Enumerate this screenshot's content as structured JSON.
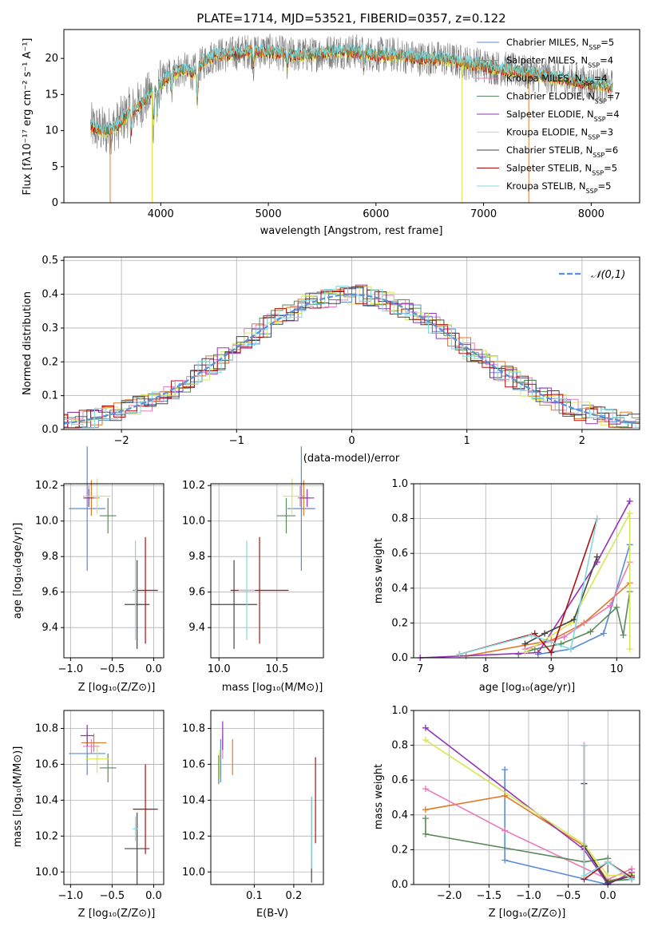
{
  "colors": {
    "chabrier_miles": "#5a8bd8",
    "salpeter_miles": "#e07a29",
    "kroupa_miles": "#e87bb7",
    "chabrier_elodie": "#5b8a5a",
    "salpeter_elodie": "#9433b6",
    "kroupa_elodie": "#d8e655",
    "chabrier_stelib": "#444444",
    "salpeter_stelib": "#b00f0f",
    "kroupa_stelib": "#7fd8e0",
    "gauss": "#5b8fd8",
    "grid": "#b0b0b0",
    "spectrum_gray": "#7a7a7a"
  },
  "chart_data": [
    {
      "id": "spectrum",
      "type": "line",
      "title": "PLATE=1714, MJD=53521, FIBERID=0357, z=0.122",
      "xlabel": "wavelength [Angstrom, rest frame]",
      "ylabel": "Flux [fλ10⁻¹⁷ erg cm⁻² s⁻¹ A⁻¹]",
      "xlim": [
        3100,
        8450
      ],
      "ylim": [
        0,
        24
      ],
      "xticks": [
        "4000",
        "5000",
        "6000",
        "7000",
        "8000"
      ],
      "yticks": [
        "0",
        "5",
        "10",
        "15",
        "20"
      ],
      "legend_position": "top-right",
      "legend": [
        {
          "label": "Chabrier MILES, N",
          "sub": "SSP",
          "tail": "=5",
          "color_key": "chabrier_miles"
        },
        {
          "label": "Salpeter MILES, N",
          "sub": "SSP",
          "tail": "=4",
          "color_key": "salpeter_miles"
        },
        {
          "label": "Kroupa MILES, N",
          "sub": "SSP",
          "tail": "=4",
          "color_key": "kroupa_miles"
        },
        {
          "label": "Chabrier ELODIE, N",
          "sub": "SSP",
          "tail": "=7",
          "color_key": "chabrier_elodie"
        },
        {
          "label": "Salpeter ELODIE, N",
          "sub": "SSP",
          "tail": "=4",
          "color_key": "salpeter_elodie"
        },
        {
          "label": "Kroupa ELODIE, N",
          "sub": "SSP",
          "tail": "=3",
          "color_key": "kroupa_elodie"
        },
        {
          "label": "Chabrier STELIB, N",
          "sub": "SSP",
          "tail": "=6",
          "color_key": "chabrier_stelib"
        },
        {
          "label": "Salpeter STELIB, N",
          "sub": "SSP",
          "tail": "=5",
          "color_key": "salpeter_stelib"
        },
        {
          "label": "Kroupa STELIB, N",
          "sub": "SSP",
          "tail": "=5",
          "color_key": "kroupa_stelib"
        }
      ],
      "trend": [
        [
          3350,
          10.5
        ],
        [
          3500,
          9.8
        ],
        [
          3600,
          10.8
        ],
        [
          3700,
          12.5
        ],
        [
          3800,
          13.5
        ],
        [
          3900,
          15
        ],
        [
          4000,
          16.5
        ],
        [
          4100,
          18
        ],
        [
          4200,
          18.5
        ],
        [
          4300,
          18
        ],
        [
          4400,
          19.5
        ],
        [
          4500,
          20.5
        ],
        [
          4600,
          20.5
        ],
        [
          4800,
          21
        ],
        [
          5000,
          21
        ],
        [
          5200,
          20.5
        ],
        [
          5400,
          20.5
        ],
        [
          5600,
          21
        ],
        [
          5800,
          21
        ],
        [
          6000,
          20.5
        ],
        [
          6200,
          20.5
        ],
        [
          6400,
          20
        ],
        [
          6600,
          20
        ],
        [
          6800,
          19.5
        ],
        [
          7000,
          19
        ],
        [
          7200,
          18.5
        ],
        [
          7400,
          18
        ],
        [
          7600,
          17.5
        ],
        [
          7800,
          17
        ],
        [
          8000,
          16.5
        ],
        [
          8200,
          16
        ]
      ]
    },
    {
      "id": "residuals",
      "type": "area",
      "xlabel": "(data-model)/error",
      "ylabel": "Normed distribution",
      "xlim": [
        -2.5,
        2.5
      ],
      "ylim": [
        0,
        0.51
      ],
      "xticks": [
        "−2",
        "−1",
        "0",
        "1",
        "2"
      ],
      "yticks": [
        "0.0",
        "0.1",
        "0.2",
        "0.3",
        "0.4",
        "0.5"
      ],
      "grid": true,
      "legend_position": "top-right",
      "legend": [
        {
          "label": "𝒩(0,1)",
          "color_key": "gauss"
        }
      ]
    },
    {
      "id": "age_vs_Z",
      "type": "scatter",
      "xlabel": "Z [log₁₀(Z/Z⊙)]",
      "ylabel": "age  [log₁₀(age/yr)]",
      "xlim": [
        -1.08,
        0.12
      ],
      "ylim": [
        9.23,
        10.21
      ],
      "xticks": [
        [
          "−1.0",
          -1.0
        ],
        [
          "−0.5",
          -0.5
        ],
        [
          "0.0",
          0.0
        ]
      ],
      "yticks": [
        [
          "9.4",
          9.4
        ],
        [
          "9.6",
          9.6
        ],
        [
          "9.8",
          9.8
        ],
        [
          "10.0",
          10.0
        ],
        [
          "10.2",
          10.2
        ]
      ],
      "grid": true,
      "points": [
        {
          "c": "chabrier_miles",
          "x": -0.8,
          "xe": 0.22,
          "y": 10.07,
          "ye": 0.35
        },
        {
          "c": "salpeter_miles",
          "x": -0.75,
          "xe": 0.1,
          "y": 10.13,
          "ye": 0.1
        },
        {
          "c": "kroupa_miles",
          "x": -0.78,
          "xe": 0.07,
          "y": 10.14,
          "ye": 0.06
        },
        {
          "c": "chabrier_elodie",
          "x": -0.55,
          "xe": 0.1,
          "y": 10.03,
          "ye": 0.1
        },
        {
          "c": "salpeter_elodie",
          "x": -0.78,
          "xe": 0.06,
          "y": 10.13,
          "ye": 0.05
        },
        {
          "c": "kroupa_elodie",
          "x": -0.68,
          "xe": 0.16,
          "y": 10.14,
          "ye": 0.1
        },
        {
          "c": "chabrier_stelib",
          "x": -0.2,
          "xe": 0.15,
          "y": 9.53,
          "ye": 0.25
        },
        {
          "c": "salpeter_stelib",
          "x": -0.1,
          "xe": 0.15,
          "y": 9.61,
          "ye": 0.3
        },
        {
          "c": "kroupa_stelib",
          "x": -0.22,
          "xe": 0.02,
          "y": 9.61,
          "ye": 0.28
        }
      ]
    },
    {
      "id": "age_vs_mass",
      "type": "scatter",
      "xlabel": "mass [log₁₀(M/M⊙)]",
      "xlim": [
        9.93,
        10.9
      ],
      "ylim": [
        9.23,
        10.21
      ],
      "xticks": [
        [
          "10.0",
          10.0
        ],
        [
          "10.5",
          10.5
        ]
      ],
      "yticks": [
        [
          "9.4",
          9.4
        ],
        [
          "9.6",
          9.6
        ],
        [
          "9.8",
          9.8
        ],
        [
          "10.0",
          10.0
        ],
        [
          "10.2",
          10.2
        ]
      ],
      "grid": true,
      "points": [
        {
          "c": "chabrier_miles",
          "x": 10.71,
          "xe": 0.12,
          "y": 10.07,
          "ye": 0.35
        },
        {
          "c": "salpeter_miles",
          "x": 10.73,
          "xe": 0.05,
          "y": 10.13,
          "ye": 0.1
        },
        {
          "c": "kroupa_miles",
          "x": 10.7,
          "xe": 0.04,
          "y": 10.14,
          "ye": 0.06
        },
        {
          "c": "chabrier_elodie",
          "x": 10.58,
          "xe": 0.08,
          "y": 10.03,
          "ye": 0.1
        },
        {
          "c": "salpeter_elodie",
          "x": 10.76,
          "xe": 0.06,
          "y": 10.13,
          "ye": 0.05
        },
        {
          "c": "kroupa_elodie",
          "x": 10.63,
          "xe": 0.08,
          "y": 10.14,
          "ye": 0.1
        },
        {
          "c": "chabrier_stelib",
          "x": 10.13,
          "xe": 0.2,
          "y": 9.53,
          "ye": 0.25
        },
        {
          "c": "salpeter_stelib",
          "x": 10.35,
          "xe": 0.25,
          "y": 9.61,
          "ye": 0.3
        },
        {
          "c": "kroupa_stelib",
          "x": 10.24,
          "xe": 0.07,
          "y": 9.61,
          "ye": 0.28
        }
      ]
    },
    {
      "id": "massweight_vs_age",
      "type": "line",
      "xlabel": "age  [log₁₀(age/yr)]",
      "ylabel": "mass weight",
      "xlim": [
        6.9,
        10.35
      ],
      "ylim": [
        0,
        1.0
      ],
      "xticks": [
        [
          "7",
          7
        ],
        [
          "8",
          8
        ],
        [
          "9",
          9
        ],
        [
          "10",
          10
        ]
      ],
      "yticks": [
        [
          "0.0",
          0
        ],
        [
          "0.2",
          0.2
        ],
        [
          "0.4",
          0.4
        ],
        [
          "0.6",
          0.6
        ],
        [
          "0.8",
          0.8
        ],
        [
          "1.0",
          1.0
        ]
      ],
      "grid": true,
      "series": [
        {
          "c": "chabrier_miles",
          "x": [
            8.8,
            9.3,
            9.8,
            10.2
          ],
          "y": [
            0.02,
            0.05,
            0.14,
            0.65
          ]
        },
        {
          "c": "salpeter_miles",
          "x": [
            7.7,
            9.0,
            9.5,
            10.2
          ],
          "y": [
            0.01,
            0.1,
            0.2,
            0.43
          ]
        },
        {
          "c": "kroupa_miles",
          "x": [
            8.6,
            9.2,
            9.9,
            10.2
          ],
          "y": [
            0.05,
            0.12,
            0.3,
            0.55
          ]
        },
        {
          "c": "chabrier_elodie",
          "x": [
            8.5,
            8.75,
            9.15,
            9.6,
            10.0,
            10.1,
            10.2
          ],
          "y": [
            0.02,
            0.05,
            0.08,
            0.15,
            0.29,
            0.13,
            0.38
          ]
        },
        {
          "c": "salpeter_elodie",
          "x": [
            7.0,
            8.8,
            9.7,
            10.2
          ],
          "y": [
            0.0,
            0.03,
            0.55,
            0.9
          ]
        },
        {
          "c": "kroupa_elodie",
          "x": [
            8.6,
            9.3,
            10.2,
            10.2
          ],
          "y": [
            0.03,
            0.2,
            0.83,
            0.05
          ]
        },
        {
          "c": "chabrier_stelib",
          "x": [
            8.6,
            8.9,
            9.35,
            9.7
          ],
          "y": [
            0.08,
            0.14,
            0.22,
            0.58
          ]
        },
        {
          "c": "salpeter_stelib",
          "x": [
            7.6,
            8.75,
            9.0,
            9.7
          ],
          "y": [
            0.02,
            0.14,
            0.03,
            0.8
          ]
        },
        {
          "c": "kroupa_stelib",
          "x": [
            7.6,
            8.7,
            9.3,
            9.7
          ],
          "y": [
            0.02,
            0.13,
            0.05,
            0.8
          ]
        }
      ]
    },
    {
      "id": "mass_vs_Z",
      "type": "scatter",
      "xlabel": "Z [log₁₀(Z/Z⊙)]",
      "ylabel": "mass [log₁₀(M/M⊙)]",
      "xlim": [
        -1.08,
        0.12
      ],
      "ylim": [
        9.93,
        10.9
      ],
      "xticks": [
        [
          "−1.0",
          -1.0
        ],
        [
          "−0.5",
          -0.5
        ],
        [
          "0.0",
          0.0
        ]
      ],
      "yticks": [
        [
          "10.0",
          10.0
        ],
        [
          "10.2",
          10.2
        ],
        [
          "10.4",
          10.4
        ],
        [
          "10.6",
          10.6
        ],
        [
          "10.8",
          10.8
        ]
      ],
      "grid": true,
      "points": [
        {
          "c": "chabrier_miles",
          "x": -0.8,
          "xe": 0.22,
          "y": 10.66,
          "ye": 0.12
        },
        {
          "c": "salpeter_miles",
          "x": -0.72,
          "xe": 0.15,
          "y": 10.72,
          "ye": 0.05
        },
        {
          "c": "kroupa_miles",
          "x": -0.75,
          "xe": 0.1,
          "y": 10.7,
          "ye": 0.04
        },
        {
          "c": "chabrier_elodie",
          "x": -0.55,
          "xe": 0.1,
          "y": 10.58,
          "ye": 0.08
        },
        {
          "c": "salpeter_elodie",
          "x": -0.8,
          "xe": 0.08,
          "y": 10.76,
          "ye": 0.06
        },
        {
          "c": "kroupa_elodie",
          "x": -0.68,
          "xe": 0.14,
          "y": 10.63,
          "ye": 0.08
        },
        {
          "c": "chabrier_stelib",
          "x": -0.2,
          "xe": 0.15,
          "y": 10.13,
          "ye": 0.2
        },
        {
          "c": "salpeter_stelib",
          "x": -0.1,
          "xe": 0.15,
          "y": 10.35,
          "ye": 0.25
        },
        {
          "c": "kroupa_stelib",
          "x": -0.22,
          "xe": 0.03,
          "y": 10.24,
          "ye": 0.07
        }
      ]
    },
    {
      "id": "mass_vs_ebv",
      "type": "scatter",
      "xlabel": "E(B-V)",
      "xlim": [
        -0.01,
        0.275
      ],
      "ylim": [
        9.93,
        10.9
      ],
      "xticks": [
        [
          "0.1",
          0.1
        ],
        [
          "0.2",
          0.2
        ]
      ],
      "yticks": [
        [
          "10.0",
          10.0
        ],
        [
          "10.2",
          10.2
        ],
        [
          "10.4",
          10.4
        ],
        [
          "10.6",
          10.6
        ],
        [
          "10.8",
          10.8
        ]
      ],
      "grid": true,
      "points": [
        {
          "c": "chabrier_miles",
          "x": 0.015,
          "xe": 0,
          "y": 10.62,
          "ye": 0.12
        },
        {
          "c": "salpeter_miles",
          "x": 0.045,
          "xe": 0,
          "y": 10.64,
          "ye": 0.1
        },
        {
          "c": "kroupa_miles",
          "x": 0.02,
          "xe": 0,
          "y": 10.7,
          "ye": 0.07
        },
        {
          "c": "chabrier_elodie",
          "x": 0.01,
          "xe": 0,
          "y": 10.57,
          "ye": 0.08
        },
        {
          "c": "salpeter_elodie",
          "x": 0.02,
          "xe": 0,
          "y": 10.76,
          "ye": 0.08
        },
        {
          "c": "kroupa_elodie",
          "x": 0.012,
          "xe": 0,
          "y": 10.6,
          "ye": 0.08
        },
        {
          "c": "chabrier_stelib",
          "x": 0.245,
          "xe": 0,
          "y": 10.18,
          "ye": 0.24
        },
        {
          "c": "salpeter_stelib",
          "x": 0.255,
          "xe": 0,
          "y": 10.4,
          "ye": 0.24
        },
        {
          "c": "kroupa_stelib",
          "x": 0.245,
          "xe": 0,
          "y": 10.22,
          "ye": 0.2
        }
      ]
    },
    {
      "id": "massweight_vs_Z",
      "type": "line",
      "xlabel": "Z [log₁₀(Z/Z⊙)]",
      "ylabel": "mass weight",
      "xlim": [
        -2.45,
        0.4
      ],
      "ylim": [
        0,
        1.0
      ],
      "xticks": [
        [
          "−2.0",
          -2.0
        ],
        [
          "−1.5",
          -1.5
        ],
        [
          "−1.0",
          -1.0
        ],
        [
          "−0.5",
          -0.5
        ],
        [
          "0.0",
          0.0
        ]
      ],
      "yticks": [
        [
          "0.0",
          0
        ],
        [
          "0.2",
          0.2
        ],
        [
          "0.4",
          0.4
        ],
        [
          "0.6",
          0.6
        ],
        [
          "0.8",
          0.8
        ],
        [
          "1.0",
          1.0
        ]
      ],
      "grid": true,
      "series": [
        {
          "c": "chabrier_miles",
          "x": [
            -1.3,
            -1.3,
            0.0,
            0.0,
            0.3
          ],
          "y": [
            0.66,
            0.14,
            0.0,
            0.02,
            0.03
          ]
        },
        {
          "c": "salpeter_miles",
          "x": [
            -2.3,
            -1.3,
            -0.3,
            0.0,
            0.3
          ],
          "y": [
            0.43,
            0.51,
            0.22,
            0.02,
            0.05
          ]
        },
        {
          "c": "kroupa_miles",
          "x": [
            -2.3,
            -1.3,
            0.0,
            0.3
          ],
          "y": [
            0.55,
            0.31,
            0.03,
            0.09
          ]
        },
        {
          "c": "chabrier_elodie",
          "x": [
            -2.3,
            -2.3,
            -0.3,
            0.0,
            0.0,
            0.3
          ],
          "y": [
            0.38,
            0.29,
            0.13,
            0.15,
            0.02,
            0.03
          ]
        },
        {
          "c": "salpeter_elodie",
          "x": [
            -2.3,
            -0.3,
            0.0,
            0.3
          ],
          "y": [
            0.9,
            0.2,
            0.0,
            0.07
          ]
        },
        {
          "c": "kroupa_elodie",
          "x": [
            -2.3,
            -0.3,
            0.0,
            0.3
          ],
          "y": [
            0.83,
            0.23,
            0.05,
            0.06
          ]
        },
        {
          "c": "chabrier_stelib",
          "x": [
            -0.3,
            -0.3,
            0.0,
            0.3
          ],
          "y": [
            0.58,
            0.22,
            0.01,
            0.05
          ]
        },
        {
          "c": "salpeter_stelib",
          "x": [
            -0.3,
            -0.3,
            0.0,
            0.3
          ],
          "y": [
            0.8,
            0.03,
            0.13,
            0.04
          ]
        },
        {
          "c": "kroupa_stelib",
          "x": [
            -0.3,
            -0.3,
            0.0,
            0.3
          ],
          "y": [
            0.8,
            0.05,
            0.13,
            0.03
          ]
        }
      ]
    }
  ]
}
